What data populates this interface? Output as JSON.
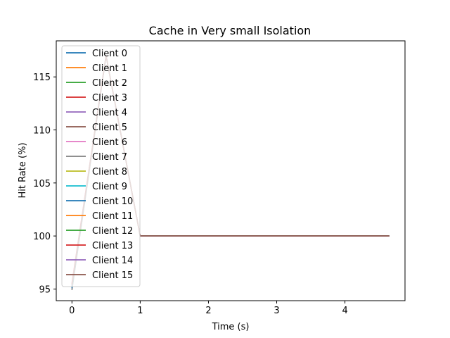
{
  "chart_data": {
    "type": "line",
    "title": "Cache in Very small Isolation",
    "xlabel": "Time (s)",
    "ylabel": "Hit Rate (%)",
    "xlim": [
      -0.23,
      4.88
    ],
    "ylim": [
      93.9,
      118.4
    ],
    "xticks": [
      0,
      1,
      2,
      3,
      4
    ],
    "yticks": [
      95,
      100,
      105,
      110,
      115
    ],
    "grid": false,
    "legend_position": "upper-left",
    "x": [
      0,
      0.5,
      1.0,
      1.5,
      2.0,
      2.5,
      3.0,
      3.5,
      4.0,
      4.5,
      4.65
    ],
    "series": [
      {
        "name": "Client 0",
        "color": "#1f77b4",
        "values": [
          95.0,
          117.0,
          100.0,
          100.0,
          100.0,
          100.0,
          100.0,
          100.0,
          100.0,
          100.0,
          100.0
        ]
      },
      {
        "name": "Client 1",
        "color": "#ff7f0e",
        "values": [
          95.3,
          117.0,
          100.0,
          100.0,
          100.0,
          100.0,
          100.0,
          100.0,
          100.0,
          100.0,
          100.0
        ]
      },
      {
        "name": "Client 2",
        "color": "#2ca02c",
        "values": [
          95.2,
          117.0,
          100.0,
          100.0,
          100.0,
          100.0,
          100.0,
          100.0,
          100.0,
          100.0,
          100.0
        ]
      },
      {
        "name": "Client 3",
        "color": "#d62728",
        "values": [
          95.5,
          117.0,
          100.0,
          100.0,
          100.0,
          100.0,
          100.0,
          100.0,
          100.0,
          100.0,
          100.0
        ]
      },
      {
        "name": "Client 4",
        "color": "#9467bd",
        "values": [
          95.1,
          117.0,
          100.0,
          100.0,
          100.0,
          100.0,
          100.0,
          100.0,
          100.0,
          100.0,
          100.0
        ]
      },
      {
        "name": "Client 5",
        "color": "#8c564b",
        "values": [
          95.4,
          117.0,
          100.0,
          100.0,
          100.0,
          100.0,
          100.0,
          100.0,
          100.0,
          100.0,
          100.0
        ]
      },
      {
        "name": "Client 6",
        "color": "#e377c2",
        "values": [
          95.6,
          117.0,
          100.0,
          100.0,
          100.0,
          100.0,
          100.0,
          100.0,
          100.0,
          100.0,
          100.0
        ]
      },
      {
        "name": "Client 7",
        "color": "#7f7f7f",
        "values": [
          94.9,
          117.0,
          100.0,
          100.0,
          100.0,
          100.0,
          100.0,
          100.0,
          100.0,
          100.0,
          100.0
        ]
      },
      {
        "name": "Client 8",
        "color": "#bcbd22",
        "values": [
          95.2,
          117.0,
          100.0,
          100.0,
          100.0,
          100.0,
          100.0,
          100.0,
          100.0,
          100.0,
          100.0
        ]
      },
      {
        "name": "Client 9",
        "color": "#17becf",
        "values": [
          95.3,
          117.0,
          100.0,
          100.0,
          100.0,
          100.0,
          100.0,
          100.0,
          100.0,
          100.0,
          100.0
        ]
      },
      {
        "name": "Client 10",
        "color": "#1f77b4",
        "values": [
          95.1,
          117.0,
          100.0,
          100.0,
          100.0,
          100.0,
          100.0,
          100.0,
          100.0,
          100.0,
          100.0
        ]
      },
      {
        "name": "Client 11",
        "color": "#ff7f0e",
        "values": [
          95.4,
          117.0,
          100.0,
          100.0,
          100.0,
          100.0,
          100.0,
          100.0,
          100.0,
          100.0,
          100.0
        ]
      },
      {
        "name": "Client 12",
        "color": "#2ca02c",
        "values": [
          95.2,
          117.0,
          100.0,
          100.0,
          100.0,
          100.0,
          100.0,
          100.0,
          100.0,
          100.0,
          100.0
        ]
      },
      {
        "name": "Client 13",
        "color": "#d62728",
        "values": [
          95.5,
          117.0,
          100.0,
          100.0,
          100.0,
          100.0,
          100.0,
          100.0,
          100.0,
          100.0,
          100.0
        ]
      },
      {
        "name": "Client 14",
        "color": "#9467bd",
        "values": [
          95.3,
          117.0,
          100.0,
          100.0,
          100.0,
          100.0,
          100.0,
          100.0,
          100.0,
          100.0,
          100.0
        ]
      },
      {
        "name": "Client 15",
        "color": "#8c564b",
        "values": [
          95.4,
          117.0,
          100.0,
          100.0,
          100.0,
          100.0,
          100.0,
          100.0,
          100.0,
          100.0,
          100.0
        ]
      }
    ]
  }
}
